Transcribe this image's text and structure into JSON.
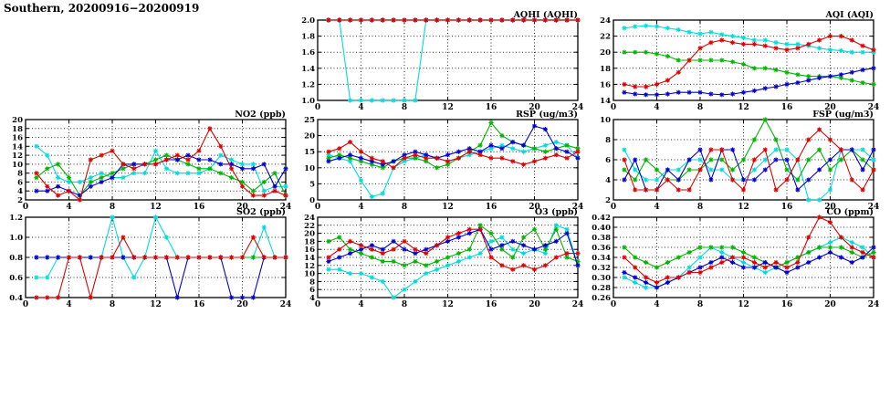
{
  "page": {
    "title": "Southern, 20200916−20200919"
  },
  "x_axis": {
    "min": 0,
    "max": 24,
    "ticks": [
      0,
      4,
      8,
      12,
      16,
      20,
      24
    ]
  },
  "hours": [
    1,
    2,
    3,
    4,
    5,
    6,
    7,
    8,
    9,
    10,
    11,
    12,
    13,
    14,
    15,
    16,
    17,
    18,
    19,
    20,
    21,
    22,
    23,
    24
  ],
  "series_colors": {
    "red": "#dd0000",
    "green": "#00b400",
    "blue": "#0000d0",
    "cyan": "#00dcdc"
  },
  "chart_data": [
    {
      "id": "aqhi",
      "type": "line",
      "title": "AQHI (AQHI)",
      "ylim": [
        1.0,
        2.0
      ],
      "yticks": [
        1.0,
        1.2,
        1.4,
        1.6,
        1.8,
        2.0
      ],
      "ydecimals": 1,
      "xlabel": "",
      "ylabel": "",
      "grid": true,
      "legend": "none",
      "series": [
        {
          "name": "cyan",
          "values": [
            2,
            2,
            1,
            1,
            1,
            1,
            1,
            1,
            1,
            2,
            2,
            2,
            2,
            2,
            2,
            2,
            2,
            2,
            2,
            2,
            2,
            2,
            2,
            2
          ]
        },
        {
          "name": "green",
          "values": [
            2,
            2,
            2,
            2,
            2,
            2,
            2,
            2,
            2,
            2,
            2,
            2,
            2,
            2,
            2,
            2,
            2,
            2,
            2,
            2,
            2,
            2,
            2,
            2
          ]
        },
        {
          "name": "blue",
          "values": [
            2,
            2,
            2,
            2,
            2,
            2,
            2,
            2,
            2,
            2,
            2,
            2,
            2,
            2,
            2,
            2,
            2,
            2,
            2,
            2,
            2,
            2,
            2,
            2
          ]
        },
        {
          "name": "red",
          "values": [
            2,
            2,
            2,
            2,
            2,
            2,
            2,
            2,
            2,
            2,
            2,
            2,
            2,
            2,
            2,
            2,
            2,
            2,
            2,
            2,
            2,
            2,
            2,
            2
          ]
        }
      ]
    },
    {
      "id": "aqi",
      "type": "line",
      "title": "AQI (AQI)",
      "ylim": [
        14,
        24
      ],
      "yticks": [
        14,
        16,
        18,
        20,
        22,
        24
      ],
      "ydecimals": 0,
      "xlabel": "",
      "ylabel": "",
      "grid": true,
      "legend": "none",
      "series": [
        {
          "name": "cyan",
          "values": [
            23,
            23.2,
            23.3,
            23.2,
            23,
            22.8,
            22.5,
            22.3,
            22.5,
            22.2,
            22,
            21.8,
            21.5,
            21.5,
            21.2,
            21,
            21,
            20.8,
            20.5,
            20.3,
            20.2,
            20,
            20,
            20
          ]
        },
        {
          "name": "green",
          "values": [
            20,
            20,
            20,
            19.8,
            19.5,
            19,
            19,
            19,
            19,
            19,
            18.8,
            18.5,
            18,
            18,
            17.8,
            17.5,
            17.2,
            17,
            17,
            17,
            16.8,
            16.5,
            16.2,
            16
          ]
        },
        {
          "name": "blue",
          "values": [
            15,
            14.8,
            14.7,
            14.7,
            14.8,
            15,
            15,
            15,
            14.8,
            14.7,
            14.8,
            15,
            15.2,
            15.5,
            15.7,
            16,
            16.2,
            16.5,
            16.8,
            17,
            17.2,
            17.5,
            17.8,
            18
          ]
        },
        {
          "name": "red",
          "values": [
            16,
            15.7,
            15.7,
            16,
            16.5,
            17.5,
            19,
            20.5,
            21.2,
            21.5,
            21.2,
            21,
            21,
            20.8,
            20.5,
            20.3,
            20.5,
            21,
            21.5,
            22,
            22,
            21.5,
            20.8,
            20.3
          ]
        }
      ]
    },
    {
      "id": "no2",
      "type": "line",
      "title": "NO2 (ppb)",
      "ylim": [
        2,
        20
      ],
      "yticks": [
        2,
        4,
        6,
        8,
        10,
        12,
        14,
        16,
        18,
        20
      ],
      "ydecimals": 0,
      "xlabel": "",
      "ylabel": "",
      "grid": true,
      "legend": "none",
      "series": [
        {
          "name": "cyan",
          "values": [
            14,
            12,
            7,
            6,
            6,
            7,
            8,
            7,
            7,
            8,
            8,
            13,
            9,
            8,
            8,
            8,
            9,
            12,
            11,
            10,
            10,
            4,
            5,
            5
          ]
        },
        {
          "name": "green",
          "values": [
            7,
            9,
            10,
            7,
            3,
            6,
            7,
            8,
            9,
            10,
            10,
            11,
            12,
            11,
            10,
            9,
            9,
            8,
            7,
            6,
            4,
            6,
            8,
            3
          ]
        },
        {
          "name": "blue",
          "values": [
            4,
            4,
            5,
            4,
            3,
            5,
            6,
            7,
            10,
            10,
            10,
            10,
            11,
            11,
            12,
            11,
            11,
            10,
            10,
            9,
            9,
            10,
            5,
            9
          ]
        },
        {
          "name": "red",
          "values": [
            8,
            5,
            3,
            4,
            2,
            11,
            12,
            13,
            10,
            9,
            10,
            10,
            11,
            12,
            11,
            13,
            18,
            14,
            9,
            5,
            3,
            3,
            4,
            3
          ]
        }
      ]
    },
    {
      "id": "rsp",
      "type": "line",
      "title": "RSP (ug/m3)",
      "ylim": [
        0,
        25
      ],
      "yticks": [
        0,
        5,
        10,
        15,
        20,
        25
      ],
      "ydecimals": 0,
      "xlabel": "",
      "ylabel": "",
      "grid": true,
      "legend": "none",
      "series": [
        {
          "name": "cyan",
          "values": [
            14,
            13,
            12,
            6,
            1,
            2,
            10,
            12,
            13,
            14,
            13,
            12,
            13,
            14,
            15,
            16,
            17,
            16,
            15,
            16,
            17,
            18,
            17,
            13
          ]
        },
        {
          "name": "green",
          "values": [
            13,
            14,
            13,
            12,
            11,
            10,
            12,
            13,
            13,
            12,
            10,
            11,
            13,
            15,
            17,
            24,
            20,
            18,
            17,
            16,
            15,
            16,
            17,
            16
          ]
        },
        {
          "name": "blue",
          "values": [
            12,
            13,
            14,
            13,
            12,
            11,
            12,
            14,
            15,
            14,
            13,
            14,
            15,
            16,
            15,
            17,
            16,
            18,
            17,
            23,
            22,
            16,
            15,
            13
          ]
        },
        {
          "name": "red",
          "values": [
            15,
            16,
            18,
            15,
            13,
            12,
            10,
            13,
            14,
            13,
            13,
            12,
            13,
            15,
            14,
            13,
            13,
            12,
            11,
            12,
            13,
            14,
            13,
            15
          ]
        }
      ]
    },
    {
      "id": "fsp",
      "type": "line",
      "title": "FSP (ug/m3)",
      "ylim": [
        2,
        10
      ],
      "yticks": [
        2,
        4,
        6,
        8,
        10
      ],
      "ydecimals": 0,
      "xlabel": "",
      "ylabel": "",
      "grid": true,
      "legend": "none",
      "series": [
        {
          "name": "cyan",
          "values": [
            7,
            5,
            4,
            4,
            5,
            5,
            6,
            6,
            5,
            5,
            4,
            4,
            5,
            6,
            7,
            7,
            6,
            2,
            2,
            3,
            7,
            7,
            7,
            6
          ]
        },
        {
          "name": "green",
          "values": [
            5,
            4,
            6,
            5,
            4,
            4,
            5,
            5,
            6,
            6,
            5,
            6,
            8,
            10,
            8,
            5,
            4,
            6,
            7,
            5,
            6,
            7,
            6,
            5
          ]
        },
        {
          "name": "blue",
          "values": [
            4,
            6,
            3,
            3,
            5,
            4,
            6,
            7,
            4,
            7,
            7,
            4,
            4,
            5,
            6,
            6,
            3,
            4,
            5,
            6,
            7,
            7,
            5,
            7
          ]
        },
        {
          "name": "red",
          "values": [
            6,
            3,
            3,
            3,
            4,
            3,
            3,
            5,
            7,
            7,
            4,
            3,
            6,
            7,
            3,
            4,
            6,
            8,
            9,
            8,
            7,
            4,
            3,
            5
          ]
        }
      ]
    },
    {
      "id": "so2",
      "type": "line",
      "title": "SO2 (ppb)",
      "ylim": [
        0.4,
        1.2
      ],
      "yticks": [
        0.4,
        0.6,
        0.8,
        1.0,
        1.2
      ],
      "ydecimals": 1,
      "xlabel": "",
      "ylabel": "",
      "grid": true,
      "legend": "none",
      "series": [
        {
          "name": "cyan",
          "values": [
            0.6,
            0.6,
            0.8,
            0.8,
            0.8,
            0.8,
            0.8,
            1.2,
            0.8,
            0.6,
            0.8,
            1.2,
            1.0,
            0.8,
            0.8,
            0.8,
            0.8,
            0.8,
            0.8,
            0.8,
            0.8,
            1.1,
            0.8,
            0.8
          ]
        },
        {
          "name": "green",
          "values": [
            0.8,
            0.8,
            0.8,
            0.8,
            0.8,
            0.8,
            0.8,
            0.8,
            0.8,
            0.8,
            0.8,
            0.8,
            0.8,
            0.8,
            0.8,
            0.8,
            0.8,
            0.8,
            0.8,
            0.8,
            0.8,
            0.8,
            0.8,
            0.8
          ]
        },
        {
          "name": "blue",
          "values": [
            0.8,
            0.8,
            0.8,
            0.8,
            0.8,
            0.8,
            0.8,
            0.8,
            0.8,
            0.8,
            0.8,
            0.8,
            0.8,
            0.4,
            0.8,
            0.8,
            0.8,
            0.8,
            0.4,
            0.4,
            0.4,
            0.8,
            0.8,
            0.8
          ]
        },
        {
          "name": "red",
          "values": [
            0.4,
            0.4,
            0.4,
            0.8,
            0.8,
            0.4,
            0.8,
            0.8,
            1.0,
            0.8,
            0.8,
            0.8,
            0.8,
            0.8,
            0.8,
            0.8,
            0.8,
            0.8,
            0.8,
            0.8,
            1.0,
            0.8,
            0.8,
            0.8
          ]
        }
      ]
    },
    {
      "id": "o3",
      "type": "line",
      "title": "O3 (ppb)",
      "ylim": [
        4,
        24
      ],
      "yticks": [
        4,
        6,
        8,
        10,
        12,
        14,
        16,
        18,
        20,
        22,
        24
      ],
      "ydecimals": 0,
      "xlabel": "",
      "ylabel": "",
      "grid": true,
      "legend": "none",
      "series": [
        {
          "name": "cyan",
          "values": [
            11,
            11,
            10,
            10,
            9,
            8,
            4,
            6,
            8,
            10,
            11,
            12,
            13,
            14,
            15,
            18,
            19,
            16,
            15,
            16,
            15,
            22,
            21,
            12
          ]
        },
        {
          "name": "green",
          "values": [
            18,
            19,
            16,
            15,
            14,
            13,
            13,
            12,
            13,
            12,
            13,
            14,
            15,
            16,
            22,
            20,
            16,
            14,
            19,
            21,
            16,
            21,
            14,
            13
          ]
        },
        {
          "name": "blue",
          "values": [
            13,
            14,
            15,
            16,
            17,
            16,
            18,
            16,
            15,
            16,
            17,
            18,
            19,
            20,
            21,
            16,
            17,
            18,
            17,
            16,
            17,
            18,
            20,
            12
          ]
        },
        {
          "name": "red",
          "values": [
            14,
            16,
            18,
            17,
            16,
            15,
            16,
            18,
            16,
            15,
            17,
            19,
            20,
            21,
            21,
            14,
            12,
            11,
            12,
            11,
            12,
            14,
            15,
            15
          ]
        }
      ]
    },
    {
      "id": "co",
      "type": "line",
      "title": "CO (ppm)",
      "ylim": [
        0.26,
        0.42
      ],
      "yticks": [
        0.26,
        0.28,
        0.3,
        0.32,
        0.34,
        0.36,
        0.38,
        0.4,
        0.42
      ],
      "ydecimals": 2,
      "xlabel": "",
      "ylabel": "",
      "grid": true,
      "legend": "none",
      "series": [
        {
          "name": "cyan",
          "values": [
            0.3,
            0.29,
            0.28,
            0.28,
            0.29,
            0.3,
            0.32,
            0.34,
            0.36,
            0.35,
            0.34,
            0.33,
            0.32,
            0.31,
            0.32,
            0.33,
            0.34,
            0.35,
            0.36,
            0.37,
            0.38,
            0.37,
            0.36,
            0.34
          ]
        },
        {
          "name": "green",
          "values": [
            0.36,
            0.34,
            0.33,
            0.32,
            0.33,
            0.34,
            0.35,
            0.36,
            0.36,
            0.36,
            0.36,
            0.35,
            0.34,
            0.33,
            0.32,
            0.33,
            0.34,
            0.35,
            0.36,
            0.36,
            0.36,
            0.35,
            0.34,
            0.35
          ]
        },
        {
          "name": "blue",
          "values": [
            0.31,
            0.3,
            0.29,
            0.28,
            0.29,
            0.3,
            0.31,
            0.32,
            0.33,
            0.34,
            0.33,
            0.32,
            0.32,
            0.33,
            0.32,
            0.31,
            0.32,
            0.33,
            0.34,
            0.35,
            0.34,
            0.33,
            0.34,
            0.36
          ]
        },
        {
          "name": "red",
          "values": [
            0.34,
            0.32,
            0.3,
            0.29,
            0.3,
            0.3,
            0.31,
            0.31,
            0.32,
            0.33,
            0.34,
            0.34,
            0.33,
            0.32,
            0.33,
            0.32,
            0.33,
            0.38,
            0.42,
            0.41,
            0.38,
            0.36,
            0.35,
            0.34
          ]
        }
      ]
    }
  ]
}
